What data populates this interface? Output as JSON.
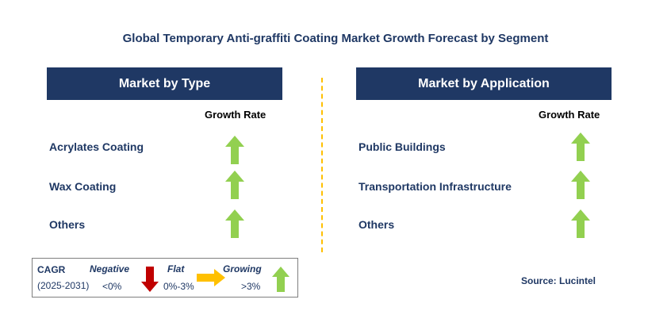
{
  "title": "Global Temporary Anti-graffiti Coating Market Growth Forecast by Segment",
  "left_panel": {
    "header": "Market by Type",
    "growth_label": "Growth Rate",
    "rows": [
      {
        "label": "Acrylates Coating",
        "trend": "growing"
      },
      {
        "label": "Wax Coating",
        "trend": "growing"
      },
      {
        "label": "Others",
        "trend": "growing"
      }
    ]
  },
  "right_panel": {
    "header": "Market by Application",
    "growth_label": "Growth Rate",
    "rows": [
      {
        "label": "Public Buildings",
        "trend": "growing"
      },
      {
        "label": "Transportation Infrastructure",
        "trend": "growing"
      },
      {
        "label": "Others",
        "trend": "growing"
      }
    ]
  },
  "legend": {
    "cagr_label": "CAGR",
    "period": "(2025-2031)",
    "negative": {
      "label": "Negative",
      "range": "<0%"
    },
    "flat": {
      "label": "Flat",
      "range": "0%-3%"
    },
    "growing": {
      "label": "Growing",
      "range": ">3%"
    }
  },
  "source": "Source: Lucintel",
  "colors": {
    "navy": "#1f3864",
    "growing": "#92d050",
    "negative": "#c00000",
    "flat": "#ffc000",
    "divider": "#ffc000"
  },
  "chart_data": {
    "type": "table",
    "title": "Global Temporary Anti-graffiti Coating Market Growth Forecast by Segment",
    "segments": [
      {
        "name": "Market by Type",
        "column": "Growth Rate",
        "categories": [
          "Acrylates Coating",
          "Wax Coating",
          "Others"
        ],
        "values": [
          "growing",
          "growing",
          "growing"
        ]
      },
      {
        "name": "Market by Application",
        "column": "Growth Rate",
        "categories": [
          "Public Buildings",
          "Transportation Infrastructure",
          "Others"
        ],
        "values": [
          "growing",
          "growing",
          "growing"
        ]
      }
    ],
    "legend": {
      "Negative": "<0%",
      "Flat": "0%-3%",
      "Growing": ">3%"
    }
  }
}
